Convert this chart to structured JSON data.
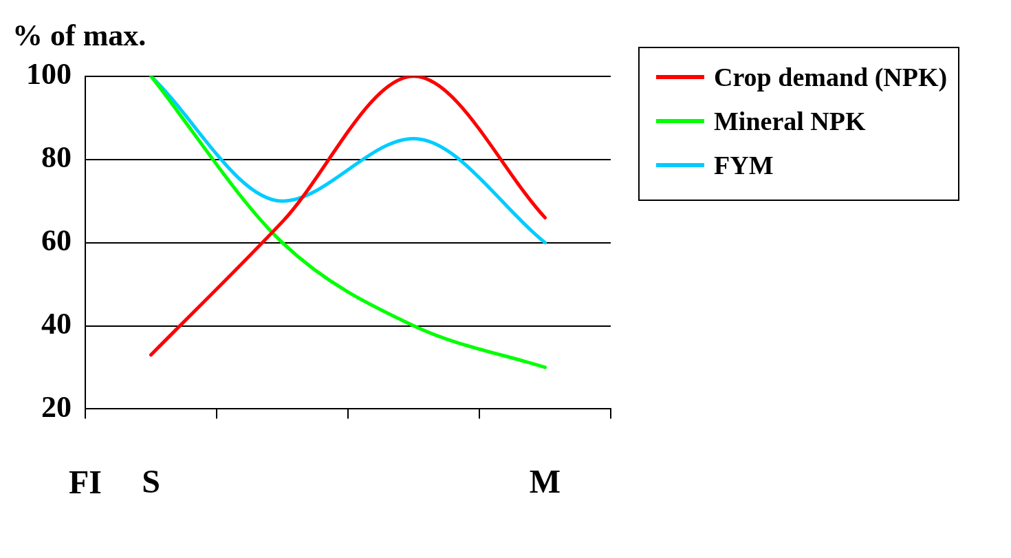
{
  "chart_data": {
    "type": "line",
    "ylabel": "% of max.",
    "categories": [
      "S",
      null,
      null,
      "M"
    ],
    "annotations": [
      "FI"
    ],
    "ylim": [
      20,
      100
    ],
    "yticks": [
      20,
      40,
      60,
      80,
      100
    ],
    "grid": "y",
    "legend": "top right",
    "marker": "none",
    "line_style": "solid",
    "series": [
      {
        "name": "Crop demand (NPK)",
        "color": "#ff0000",
        "values": [
          33,
          65,
          100,
          66
        ]
      },
      {
        "name": "Mineral NPK",
        "color": "#00ff00",
        "values": [
          100,
          60,
          40,
          30
        ]
      },
      {
        "name": "FYM",
        "color": "#00ccff",
        "values": [
          100,
          70,
          85,
          60
        ]
      }
    ]
  }
}
